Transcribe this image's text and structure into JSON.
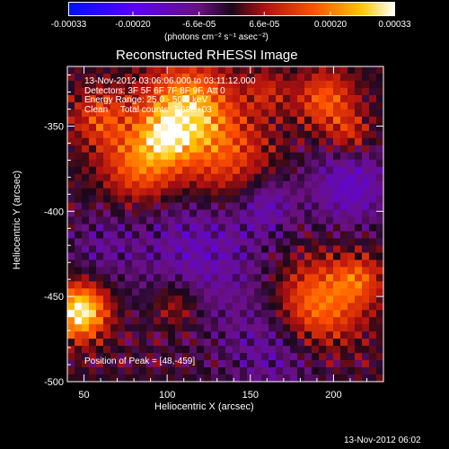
{
  "colorbar": {
    "ticks": [
      "-0.00033",
      "-0.00020",
      "-6.6e-05",
      "6.6e-05",
      "0.00020",
      "0.00033"
    ],
    "tick_values": [
      -0.00033,
      -0.0002,
      -6.6e-05,
      6.6e-05,
      0.0002,
      0.00033
    ],
    "range": [
      -0.00033,
      0.00033
    ],
    "units": "(photons cm⁻² s⁻¹ asec⁻²)",
    "colors": [
      "#0010ff",
      "#5a00ff",
      "#7a00a8",
      "#2a0a2a",
      "#c01010",
      "#ff5000",
      "#ffd000",
      "#ffffff"
    ]
  },
  "chart_data": {
    "type": "heatmap",
    "title": "Reconstructed RHESSI Image",
    "xlabel": "Heliocentric X (arcsec)",
    "ylabel": "Heliocentric Y (arcsec)",
    "xlim": [
      40,
      230
    ],
    "ylim": [
      -500,
      -315
    ],
    "xticks": [
      50,
      100,
      150,
      200
    ],
    "yticks": [
      -350,
      -400,
      -450,
      -500
    ],
    "annotations": [
      "13-Nov-2012 03:06:06.000 to 03:11:12.000",
      "Detectors: 3F 5F 6F 7F 8F 9F, Att 0",
      "Energy Range: 25.0 - 50.0 keV",
      "Clean     Total counts: 7.68E+03"
    ],
    "peak_label": "Position of Peak = [48,-459]",
    "peak": [
      48,
      -459
    ],
    "color_map": "blue-purple-black-red-yellow-white diverging"
  },
  "footer": {
    "timestamp": "13-Nov-2012 06:02"
  }
}
